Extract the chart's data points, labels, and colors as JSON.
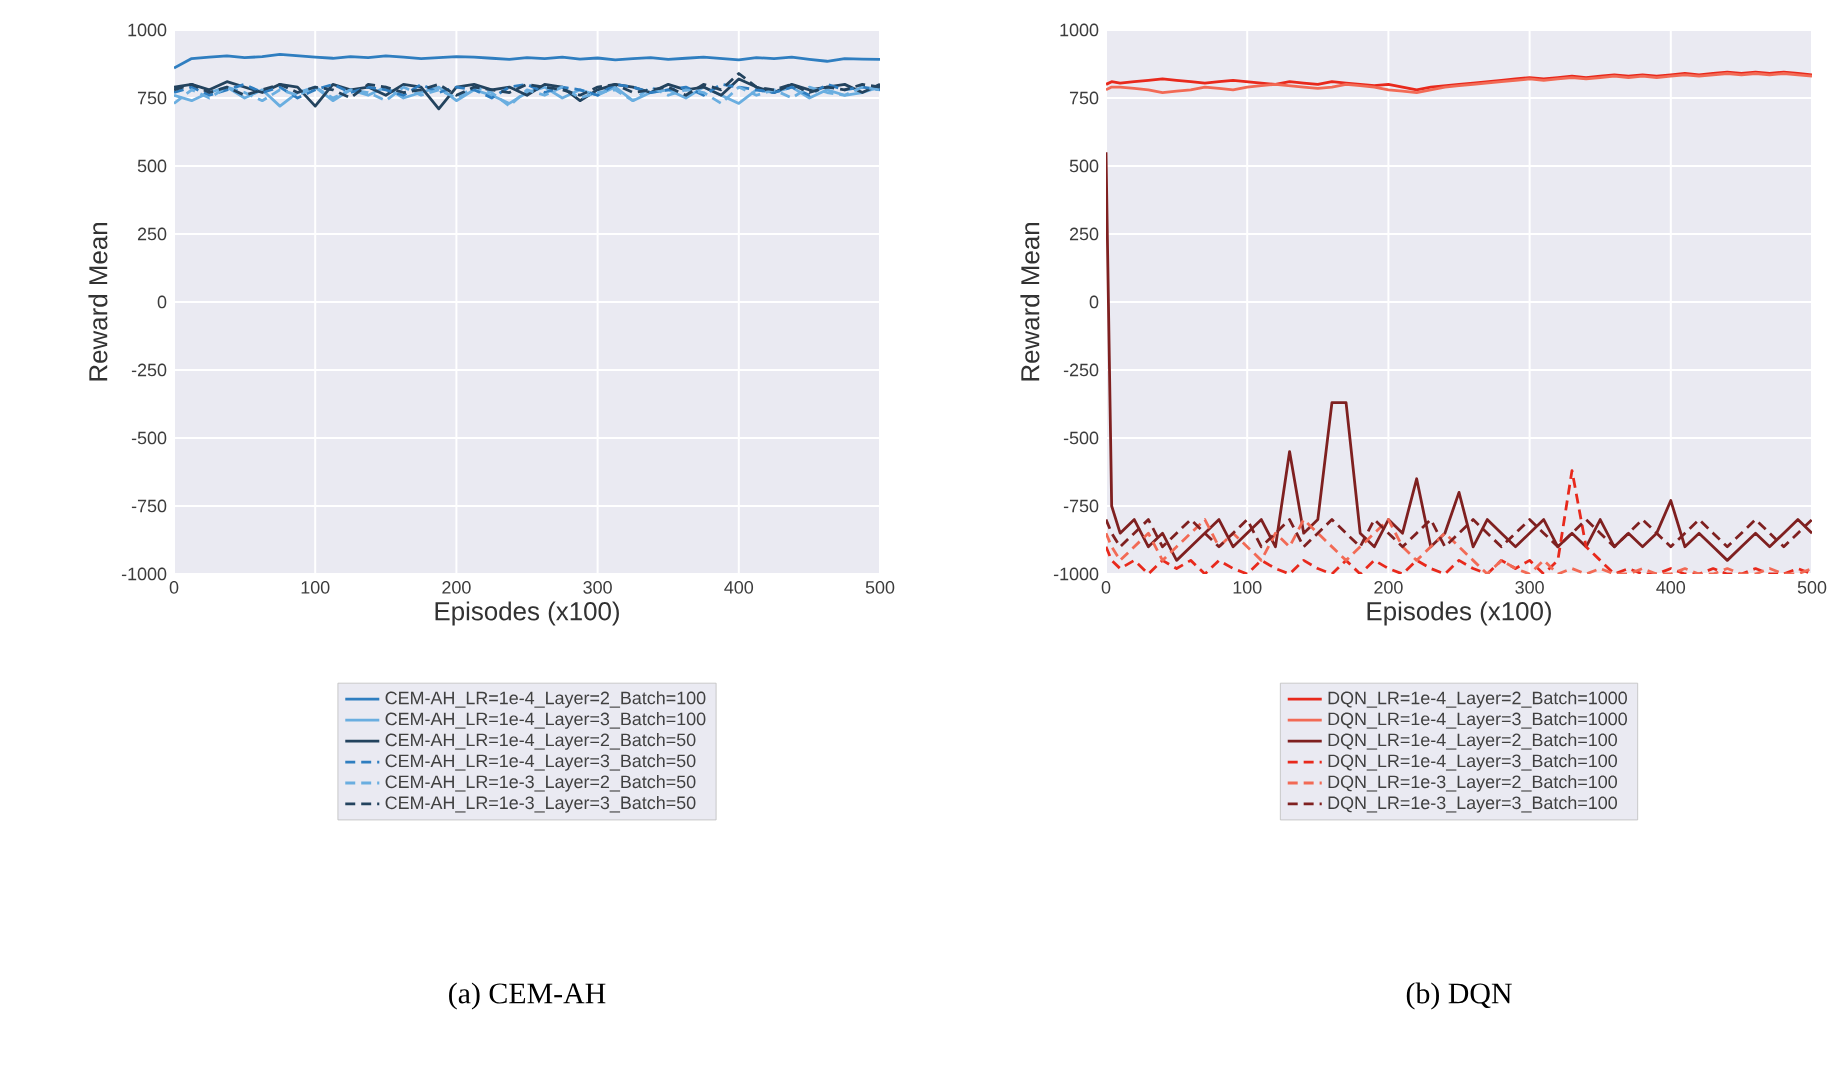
{
  "chart_data": [
    {
      "type": "line",
      "title": "(a) CEM-AH",
      "xlabel": "Episodes (x100)",
      "ylabel": "Reward Mean",
      "xlim": [
        0,
        500
      ],
      "ylim": [
        -1000,
        1000
      ],
      "xticks": [
        0,
        100,
        200,
        300,
        400,
        500
      ],
      "yticks": [
        -1000,
        -750,
        -500,
        -250,
        0,
        250,
        500,
        750,
        1000
      ],
      "grid": true,
      "legend": "bottom",
      "x": [
        0,
        12.5,
        25,
        37.5,
        50,
        62.5,
        75,
        87.5,
        100,
        112.5,
        125,
        137.5,
        150,
        162.5,
        175,
        187.5,
        200,
        212.5,
        225,
        237.5,
        250,
        262.5,
        275,
        287.5,
        300,
        312.5,
        325,
        337.5,
        350,
        362.5,
        375,
        387.5,
        400,
        412.5,
        425,
        437.5,
        450,
        462.5,
        475,
        487.5,
        500
      ],
      "series": [
        {
          "name": "CEM-AH_LR=1e-4_Layer=2_Batch=100",
          "color": "#2f7ec0",
          "line_style": "solid",
          "values": [
            860,
            895,
            900,
            905,
            898,
            902,
            910,
            905,
            900,
            896,
            902,
            898,
            905,
            900,
            895,
            898,
            902,
            900,
            896,
            892,
            898,
            895,
            900,
            893,
            897,
            890,
            895,
            898,
            892,
            896,
            900,
            895,
            890,
            898,
            895,
            900,
            892,
            885,
            895,
            893,
            892
          ]
        },
        {
          "name": "CEM-AH_LR=1e-4_Layer=3_Batch=100",
          "color": "#6aaee0",
          "line_style": "solid",
          "values": [
            760,
            740,
            770,
            790,
            750,
            780,
            720,
            770,
            790,
            740,
            780,
            760,
            790,
            750,
            770,
            790,
            740,
            780,
            760,
            730,
            770,
            790,
            750,
            780,
            760,
            790,
            740,
            770,
            780,
            750,
            790,
            760,
            730,
            780,
            770,
            790,
            750,
            780,
            760,
            770,
            790
          ]
        },
        {
          "name": "CEM-AH_LR=1e-4_Layer=2_Batch=50",
          "color": "#23435e",
          "line_style": "solid",
          "values": [
            790,
            800,
            780,
            810,
            790,
            770,
            800,
            790,
            720,
            800,
            780,
            790,
            760,
            800,
            790,
            710,
            790,
            800,
            780,
            790,
            760,
            800,
            790,
            740,
            780,
            800,
            790,
            770,
            800,
            780,
            790,
            760,
            820,
            790,
            770,
            800,
            780,
            790,
            800,
            770,
            800
          ]
        },
        {
          "name": "CEM-AH_LR=1e-4_Layer=3_Batch=50",
          "color": "#2f7ec0",
          "line_style": "dashed",
          "values": [
            770,
            790,
            760,
            780,
            800,
            770,
            790,
            750,
            780,
            800,
            770,
            790,
            780,
            760,
            800,
            770,
            790,
            780,
            750,
            790,
            800,
            770,
            790,
            780,
            760,
            800,
            790,
            770,
            780,
            790,
            760,
            800,
            790,
            780,
            770,
            790,
            760,
            800,
            780,
            790,
            780
          ]
        },
        {
          "name": "CEM-AH_LR=1e-3_Layer=2_Batch=50",
          "color": "#6aaee0",
          "line_style": "dashed",
          "values": [
            730,
            780,
            750,
            790,
            770,
            740,
            780,
            760,
            790,
            750,
            780,
            770,
            740,
            790,
            760,
            780,
            750,
            790,
            770,
            720,
            780,
            760,
            790,
            750,
            770,
            780,
            740,
            790,
            760,
            780,
            770,
            730,
            790,
            760,
            780,
            750,
            790,
            770,
            760,
            790,
            780
          ]
        },
        {
          "name": "CEM-AH_LR=1e-3_Layer=3_Batch=50",
          "color": "#23435e",
          "line_style": "dashed",
          "values": [
            780,
            800,
            770,
            790,
            760,
            780,
            800,
            770,
            790,
            780,
            750,
            800,
            790,
            770,
            780,
            800,
            760,
            790,
            780,
            770,
            800,
            790,
            780,
            760,
            790,
            800,
            770,
            780,
            790,
            760,
            800,
            780,
            840,
            790,
            780,
            800,
            770,
            790,
            780,
            800,
            790
          ]
        }
      ]
    },
    {
      "type": "line",
      "title": "(b) DQN",
      "xlabel": "Episodes (x100)",
      "ylabel": "Reward Mean",
      "xlim": [
        0,
        500
      ],
      "ylim": [
        -1000,
        1000
      ],
      "xticks": [
        0,
        100,
        200,
        300,
        400,
        500
      ],
      "yticks": [
        -1000,
        -750,
        -500,
        -250,
        0,
        250,
        500,
        750,
        1000
      ],
      "grid": true,
      "legend": "bottom",
      "x": [
        0,
        4,
        10,
        20,
        30,
        40,
        50,
        60,
        70,
        80,
        90,
        100,
        110,
        120,
        130,
        140,
        150,
        160,
        170,
        180,
        190,
        200,
        210,
        220,
        230,
        240,
        250,
        260,
        270,
        280,
        290,
        300,
        310,
        320,
        330,
        340,
        350,
        360,
        370,
        380,
        390,
        400,
        410,
        420,
        430,
        440,
        450,
        460,
        470,
        480,
        490,
        500
      ],
      "series": [
        {
          "name": "DQN_LR=1e-4_Layer=2_Batch=1000",
          "color": "#e8291c",
          "line_style": "solid",
          "values": [
            800,
            810,
            805,
            810,
            815,
            820,
            815,
            810,
            805,
            810,
            815,
            810,
            805,
            800,
            810,
            805,
            800,
            810,
            805,
            800,
            795,
            800,
            790,
            780,
            790,
            795,
            800,
            805,
            810,
            815,
            820,
            825,
            820,
            825,
            830,
            825,
            830,
            835,
            830,
            835,
            830,
            835,
            840,
            835,
            840,
            845,
            840,
            845,
            840,
            845,
            840,
            835
          ]
        },
        {
          "name": "DQN_LR=1e-4_Layer=3_Batch=1000",
          "color": "#f26a55",
          "line_style": "solid",
          "values": [
            780,
            790,
            790,
            785,
            780,
            770,
            775,
            780,
            790,
            785,
            780,
            790,
            795,
            800,
            795,
            790,
            785,
            790,
            800,
            795,
            790,
            780,
            775,
            770,
            780,
            790,
            795,
            800,
            805,
            810,
            815,
            820,
            815,
            820,
            825,
            820,
            825,
            830,
            825,
            830,
            825,
            830,
            835,
            830,
            835,
            840,
            835,
            840,
            835,
            840,
            835,
            830
          ]
        },
        {
          "name": "DQN_LR=1e-4_Layer=2_Batch=100",
          "color": "#7f2020",
          "line_style": "solid",
          "values": [
            550,
            -750,
            -850,
            -800,
            -900,
            -850,
            -950,
            -900,
            -850,
            -800,
            -900,
            -850,
            -800,
            -900,
            -550,
            -850,
            -800,
            -370,
            -370,
            -850,
            -900,
            -800,
            -850,
            -650,
            -900,
            -850,
            -700,
            -900,
            -800,
            -850,
            -900,
            -850,
            -800,
            -900,
            -850,
            -900,
            -800,
            -900,
            -850,
            -900,
            -850,
            -730,
            -900,
            -850,
            -900,
            -950,
            -900,
            -850,
            -900,
            -850,
            -800,
            -850
          ]
        },
        {
          "name": "DQN_LR=1e-4_Layer=3_Batch=100",
          "color": "#e8291c",
          "line_style": "dashed",
          "values": [
            -900,
            -950,
            -980,
            -950,
            -1000,
            -950,
            -980,
            -950,
            -1000,
            -950,
            -980,
            -1000,
            -950,
            -980,
            -1000,
            -950,
            -980,
            -1000,
            -950,
            -1000,
            -950,
            -980,
            -1000,
            -950,
            -980,
            -1000,
            -950,
            -980,
            -1000,
            -950,
            -980,
            -950,
            -1000,
            -950,
            -620,
            -900,
            -950,
            -1000,
            -980,
            -1000,
            -1000,
            -980,
            -1000,
            -1000,
            -980,
            -1000,
            -1000,
            -980,
            -1000,
            -1000,
            -980,
            -1000
          ]
        },
        {
          "name": "DQN_LR=1e-3_Layer=2_Batch=100",
          "color": "#f26a55",
          "line_style": "dashed",
          "values": [
            -850,
            -900,
            -950,
            -900,
            -850,
            -950,
            -900,
            -850,
            -800,
            -900,
            -850,
            -900,
            -950,
            -850,
            -900,
            -800,
            -850,
            -900,
            -950,
            -900,
            -850,
            -800,
            -900,
            -950,
            -900,
            -850,
            -900,
            -950,
            -1000,
            -950,
            -980,
            -1000,
            -950,
            -1000,
            -980,
            -1000,
            -980,
            -1000,
            -1000,
            -980,
            -1000,
            -1000,
            -980,
            -1000,
            -1000,
            -980,
            -1000,
            -1000,
            -980,
            -1000,
            -1000,
            -980
          ]
        },
        {
          "name": "DQN_LR=1e-3_Layer=3_Batch=100",
          "color": "#7f2020",
          "line_style": "dashed",
          "values": [
            -800,
            -850,
            -900,
            -850,
            -800,
            -900,
            -850,
            -800,
            -850,
            -900,
            -850,
            -800,
            -900,
            -850,
            -800,
            -900,
            -850,
            -800,
            -850,
            -900,
            -800,
            -850,
            -900,
            -850,
            -800,
            -900,
            -850,
            -800,
            -850,
            -900,
            -850,
            -800,
            -850,
            -900,
            -850,
            -800,
            -850,
            -900,
            -850,
            -800,
            -850,
            -900,
            -850,
            -800,
            -850,
            -900,
            -850,
            -800,
            -850,
            -900,
            -850,
            -800
          ]
        }
      ]
    }
  ]
}
